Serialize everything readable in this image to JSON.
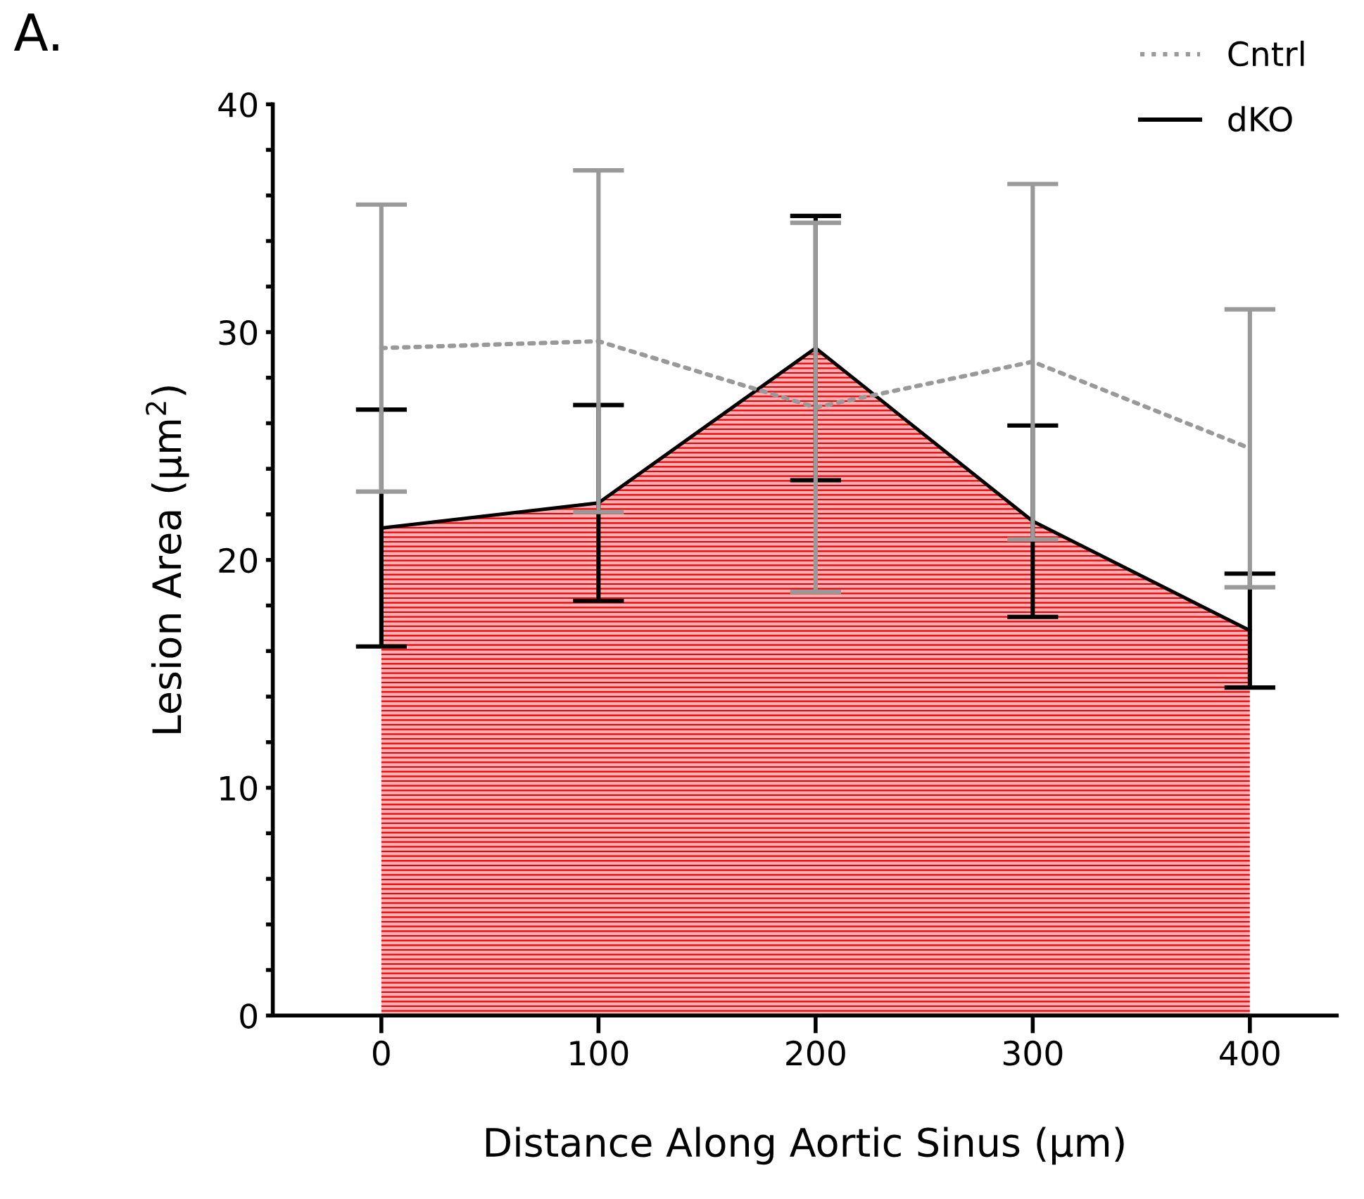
{
  "chart_data": {
    "type": "line",
    "xlabel": "Distance Along Aortic Sinus (µm)",
    "ylabel": "Lesion Area (µm$^{2}$)",
    "annotations": [
      "A."
    ],
    "x": [
      0,
      100,
      200,
      300,
      400
    ],
    "xlim": [
      -50,
      440
    ],
    "xticks": [
      0,
      100,
      200,
      300,
      400
    ],
    "ylim": [
      0,
      40
    ],
    "yticks": [
      0,
      {
        "value": 2,
        "label": null
      },
      {
        "value": 4,
        "label": null
      },
      {
        "value": 6,
        "label": null
      },
      {
        "value": 8,
        "label": null
      },
      10,
      {
        "value": 12,
        "label": null
      },
      {
        "value": 14,
        "label": null
      },
      {
        "value": 16,
        "label": null
      },
      {
        "value": 18,
        "label": null
      },
      20,
      {
        "value": 22,
        "label": null
      },
      {
        "value": 24,
        "label": null
      },
      {
        "value": 26,
        "label": null
      },
      {
        "value": 28,
        "label": null
      },
      30,
      {
        "value": 32,
        "label": null
      },
      {
        "value": 34,
        "label": null
      },
      {
        "value": 36,
        "label": null
      },
      {
        "value": 38,
        "label": null
      },
      40
    ],
    "grid": false,
    "legend": "top right",
    "marker": "none",
    "series": [
      {
        "name": "dKO",
        "type": "area",
        "color": "#000000",
        "line_style": "solid",
        "values": [
          21.4,
          22.5,
          29.3,
          21.7,
          16.9
        ],
        "errors": [
          5.2,
          4.3,
          5.8,
          4.2,
          2.5
        ]
      },
      {
        "name": "Cntrl",
        "color": "#999999",
        "line_style": "dotted",
        "values": [
          29.3,
          29.6,
          26.7,
          28.7,
          24.9
        ],
        "errors": [
          6.3,
          7.5,
          8.1,
          7.8,
          6.1
        ]
      }
    ]
  }
}
